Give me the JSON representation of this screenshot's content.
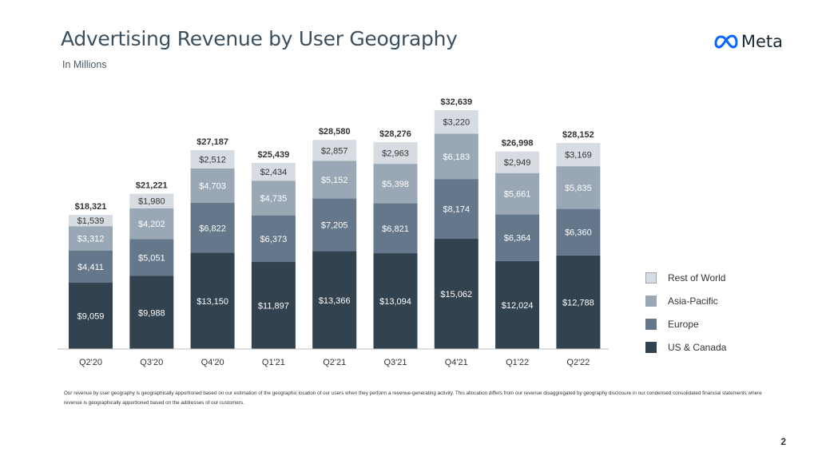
{
  "header": {
    "title": "Advertising Revenue by User Geography",
    "subtitle": "In Millions"
  },
  "logo": {
    "text": "Meta",
    "icon": "meta-infinity-icon",
    "color": "#0866ff"
  },
  "chart_data": {
    "type": "bar",
    "stacked": true,
    "title": "Advertising Revenue by User Geography",
    "subtitle": "In Millions",
    "categories": [
      "Q2'20",
      "Q3'20",
      "Q4'20",
      "Q1'21",
      "Q2'21",
      "Q3'21",
      "Q4'21",
      "Q1'22",
      "Q2'22"
    ],
    "series": [
      {
        "name": "US & Canada",
        "color": "#33424f",
        "text_color": "#ffffff",
        "values": [
          9059,
          9988,
          13150,
          11897,
          13366,
          13094,
          15062,
          12024,
          12788
        ],
        "labels": [
          "$9,059",
          "$9,988",
          "$13,150",
          "$11,897",
          "$13,366",
          "$13,094",
          "$15,062",
          "$12,024",
          "$12,788"
        ]
      },
      {
        "name": "Europe",
        "color": "#65778a",
        "text_color": "#ffffff",
        "values": [
          4411,
          5051,
          6822,
          6373,
          7205,
          6821,
          8174,
          6364,
          6360
        ],
        "labels": [
          "$4,411",
          "$5,051",
          "$6,822",
          "$6,373",
          "$7,205",
          "$6,821",
          "$8,174",
          "$6,364",
          "$6,360"
        ]
      },
      {
        "name": "Asia-Pacific",
        "color": "#9aa8b5",
        "text_color": "#ffffff",
        "values": [
          3312,
          4202,
          4703,
          4735,
          5152,
          5398,
          6183,
          5661,
          5835
        ],
        "labels": [
          "$3,312",
          "$4,202",
          "$4,703",
          "$4,735",
          "$5,152",
          "$5,398",
          "$6,183",
          "$5,661",
          "$5,835"
        ]
      },
      {
        "name": "Rest of World",
        "color": "#d6dce2",
        "text_color": "#333333",
        "values": [
          1539,
          1980,
          2512,
          2434,
          2857,
          2963,
          3220,
          2949,
          3169
        ],
        "labels": [
          "$1,539",
          "$1,980",
          "$2,512",
          "$2,434",
          "$2,857",
          "$2,963",
          "$3,220",
          "$2,949",
          "$3,169"
        ]
      }
    ],
    "totals": [
      18321,
      21221,
      27187,
      25439,
      28580,
      28276,
      32639,
      26998,
      28152
    ],
    "total_labels": [
      "$18,321",
      "$21,221",
      "$27,187",
      "$25,439",
      "$28,580",
      "$28,276",
      "$32,639",
      "$26,998",
      "$28,152"
    ],
    "legend_order": [
      "Rest of World",
      "Asia-Pacific",
      "Europe",
      "US & Canada"
    ],
    "legend_position": "right",
    "ylim": [
      0,
      32639
    ],
    "grid": false
  },
  "footnote": "Our revenue by user geography is geographically apportioned based on our estimation of the geographic location of our users when they perform a revenue-generating activity. This allocation differs from our revenue disaggregated by geography disclosure in our condensed consolidated financial statements where revenue is geographically apportioned based on the addresses of our customers.",
  "page_number": "2"
}
